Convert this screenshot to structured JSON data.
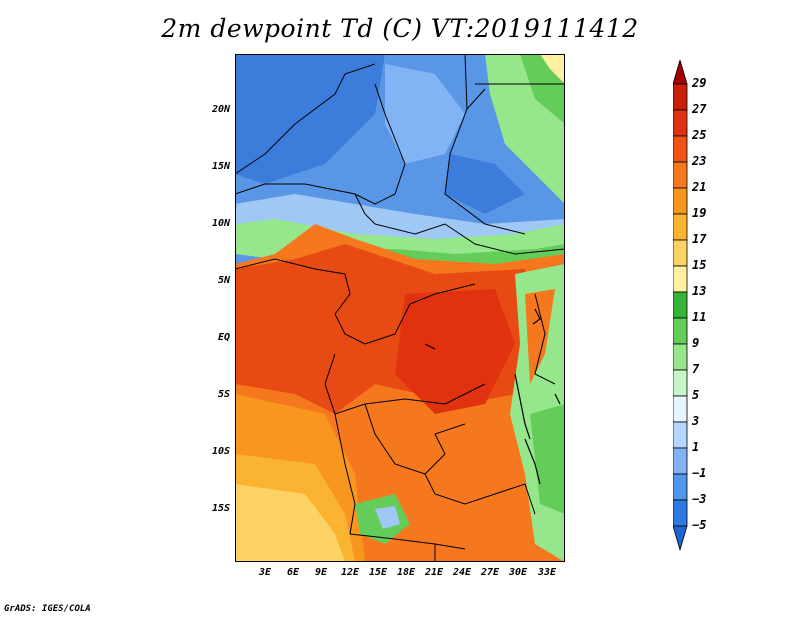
{
  "title": "2m dewpoint Td (C) VT:2019111412",
  "footer": "GrADS: IGES/COLA",
  "lat_labels": [
    "20N",
    "15N",
    "10N",
    "5N",
    "EQ",
    "5S",
    "10S",
    "15S"
  ],
  "lon_labels": [
    "3E",
    "6E",
    "9E",
    "12E",
    "15E",
    "18E",
    "21E",
    "24E",
    "27E",
    "30E",
    "33E"
  ],
  "colorbar": {
    "levels": [
      "29",
      "27",
      "25",
      "23",
      "21",
      "19",
      "17",
      "15",
      "13",
      "11",
      "9",
      "7",
      "5",
      "3",
      "1",
      "−1",
      "−3",
      "−5"
    ],
    "colors": [
      "#a50000",
      "#c81e0a",
      "#e1320f",
      "#ee5515",
      "#f5781e",
      "#f8961e",
      "#fab432",
      "#fcd264",
      "#fdf0a0",
      "#37b437",
      "#64cd5a",
      "#96e68c",
      "#c8f5c8",
      "#e6f5ff",
      "#b4d7ff",
      "#82b4f5",
      "#5096eb",
      "#2d78e1",
      "#1e64d2"
    ]
  },
  "colors": {
    "desert_blue": "#5a96e6",
    "deep_blue": "#3c7ddc",
    "light_blue": "#a0c8f5",
    "green": "#64cd5a",
    "orange_red": "#e84a14",
    "orange": "#f5781e",
    "light_orange": "#fab432",
    "pale_yellow": "#fcd264"
  }
}
